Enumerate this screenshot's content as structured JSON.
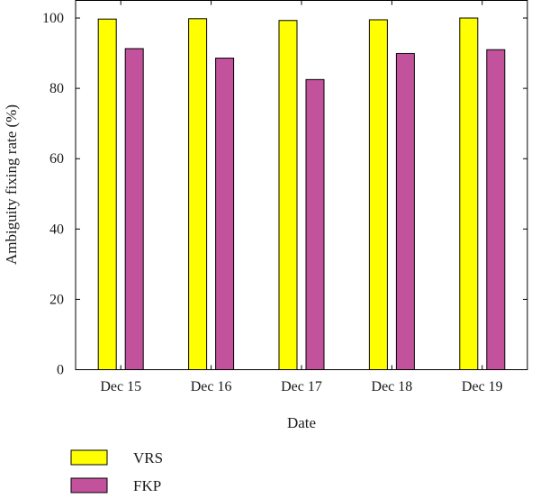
{
  "chart_data": {
    "type": "bar",
    "categories": [
      "Dec 15",
      "Dec 16",
      "Dec 17",
      "Dec 18",
      "Dec 19"
    ],
    "series": [
      {
        "name": "VRS",
        "values": [
          99.7,
          99.8,
          99.3,
          99.5,
          100.0
        ],
        "color": "#ffff00"
      },
      {
        "name": "FKP",
        "values": [
          91.3,
          88.6,
          82.5,
          89.9,
          91.0
        ],
        "color": "#c2529c"
      }
    ],
    "xlabel": "Date",
    "ylabel": "Ambiguity fixing rate (%)",
    "ylim": [
      0,
      105
    ],
    "yticks": [
      0,
      20,
      40,
      60,
      80,
      100
    ],
    "grid": false,
    "legend_position": "bottom-left"
  }
}
